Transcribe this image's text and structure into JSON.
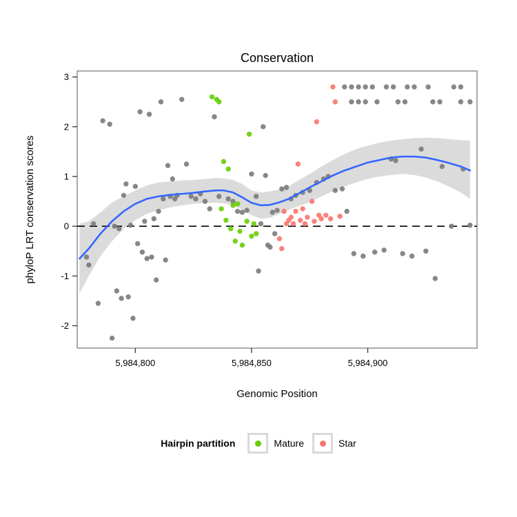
{
  "title": "Conservation",
  "xlabel": "Genomic Position",
  "ylabel": "phyloP LRT conservation scores",
  "legend": {
    "title": "Hairpin partition",
    "items": [
      {
        "label": "Mature",
        "color": "#66CD00"
      },
      {
        "label": "Star",
        "color": "#F8766D"
      }
    ]
  },
  "colors": {
    "other_points": "#7a7a7a",
    "smooth_line": "#3366FF",
    "ribbon": "#999999",
    "panel_border": "#8f8f8f",
    "zero_line": "#000000"
  },
  "chart_data": {
    "type": "scatter",
    "title": "Conservation",
    "xlabel": "Genomic Position",
    "ylabel": "phyloP LRT conservation scores",
    "xlim": [
      5984775,
      5984947
    ],
    "ylim": [
      -2.45,
      3.12
    ],
    "x_ticks": {
      "values": [
        5984800,
        5984850,
        5984900
      ],
      "labels": [
        "5,984,800",
        "5,984,850",
        "5,984,900"
      ]
    },
    "y_ticks": {
      "values": [
        -2,
        -1,
        0,
        1,
        2,
        3
      ],
      "labels": [
        "-2",
        "-1",
        "0",
        "1",
        "2",
        "3"
      ]
    },
    "zero_line": 0,
    "grid": false,
    "legend_position": "bottom",
    "series": [
      {
        "name": "Other",
        "color": "#7a7a7a",
        "points": [
          [
            5984779,
            -0.62
          ],
          [
            5984780,
            -0.78
          ],
          [
            5984782,
            0.05
          ],
          [
            5984784,
            -1.55
          ],
          [
            5984786,
            2.12
          ],
          [
            5984790,
            -2.25
          ],
          [
            5984789,
            2.05
          ],
          [
            5984791,
            0.0
          ],
          [
            5984792,
            -1.3
          ],
          [
            5984793,
            -0.05
          ],
          [
            5984794,
            -1.45
          ],
          [
            5984795,
            0.62
          ],
          [
            5984796,
            0.85
          ],
          [
            5984797,
            -1.42
          ],
          [
            5984798,
            0.02
          ],
          [
            5984799,
            -1.85
          ],
          [
            5984800,
            0.8
          ],
          [
            5984801,
            -0.35
          ],
          [
            5984802,
            2.3
          ],
          [
            5984803,
            -0.52
          ],
          [
            5984804,
            0.1
          ],
          [
            5984805,
            -0.65
          ],
          [
            5984806,
            2.25
          ],
          [
            5984807,
            -0.62
          ],
          [
            5984808,
            0.15
          ],
          [
            5984809,
            -1.08
          ],
          [
            5984810,
            0.3
          ],
          [
            5984811,
            2.5
          ],
          [
            5984812,
            0.55
          ],
          [
            5984813,
            -0.68
          ],
          [
            5984814,
            1.22
          ],
          [
            5984815,
            0.6
          ],
          [
            5984816,
            0.95
          ],
          [
            5984817,
            0.55
          ],
          [
            5984818,
            0.62
          ],
          [
            5984820,
            2.55
          ],
          [
            5984822,
            1.25
          ],
          [
            5984824,
            0.6
          ],
          [
            5984826,
            0.55
          ],
          [
            5984828,
            0.65
          ],
          [
            5984830,
            0.5
          ],
          [
            5984832,
            0.35
          ],
          [
            5984834,
            2.2
          ],
          [
            5984836,
            0.6
          ],
          [
            5984840,
            0.55
          ],
          [
            5984842,
            0.5
          ],
          [
            5984844,
            0.3
          ],
          [
            5984846,
            0.28
          ],
          [
            5984848,
            0.32
          ],
          [
            5984850,
            1.05
          ],
          [
            5984852,
            0.6
          ],
          [
            5984853,
            -0.9
          ],
          [
            5984854,
            0.05
          ],
          [
            5984855,
            2.0
          ],
          [
            5984856,
            1.02
          ],
          [
            5984857,
            -0.38
          ],
          [
            5984858,
            -0.42
          ],
          [
            5984859,
            0.28
          ],
          [
            5984860,
            -0.15
          ],
          [
            5984861,
            0.32
          ],
          [
            5984863,
            0.75
          ],
          [
            5984865,
            0.78
          ],
          [
            5984867,
            0.55
          ],
          [
            5984869,
            0.62
          ],
          [
            5984872,
            0.68
          ],
          [
            5984875,
            0.72
          ],
          [
            5984878,
            0.88
          ],
          [
            5984881,
            0.95
          ],
          [
            5984883,
            1.0
          ],
          [
            5984886,
            0.72
          ],
          [
            5984889,
            0.75
          ],
          [
            5984890,
            2.8
          ],
          [
            5984893,
            2.8
          ],
          [
            5984896,
            2.8
          ],
          [
            5984899,
            2.8
          ],
          [
            5984902,
            2.8
          ],
          [
            5984908,
            2.8
          ],
          [
            5984911,
            2.8
          ],
          [
            5984917,
            2.8
          ],
          [
            5984920,
            2.8
          ],
          [
            5984926,
            2.8
          ],
          [
            5984937,
            2.8
          ],
          [
            5984940,
            2.8
          ],
          [
            5984893,
            2.5
          ],
          [
            5984896,
            2.5
          ],
          [
            5984899,
            2.5
          ],
          [
            5984904,
            2.5
          ],
          [
            5984913,
            2.5
          ],
          [
            5984916,
            2.5
          ],
          [
            5984928,
            2.5
          ],
          [
            5984931,
            2.5
          ],
          [
            5984940,
            2.5
          ],
          [
            5984944,
            2.5
          ],
          [
            5984891,
            0.3
          ],
          [
            5984894,
            -0.55
          ],
          [
            5984898,
            -0.6
          ],
          [
            5984903,
            -0.52
          ],
          [
            5984907,
            -0.48
          ],
          [
            5984910,
            1.35
          ],
          [
            5984912,
            1.32
          ],
          [
            5984915,
            -0.55
          ],
          [
            5984919,
            -0.6
          ],
          [
            5984923,
            1.55
          ],
          [
            5984925,
            -0.5
          ],
          [
            5984929,
            -1.05
          ],
          [
            5984932,
            1.2
          ],
          [
            5984936,
            0.0
          ],
          [
            5984941,
            1.15
          ],
          [
            5984944,
            0.02
          ]
        ]
      },
      {
        "name": "Mature",
        "color": "#66CD00",
        "points": [
          [
            5984833,
            2.6
          ],
          [
            5984835,
            2.55
          ],
          [
            5984836,
            2.5
          ],
          [
            5984838,
            1.3
          ],
          [
            5984840,
            1.15
          ],
          [
            5984837,
            0.35
          ],
          [
            5984839,
            0.12
          ],
          [
            5984841,
            -0.05
          ],
          [
            5984842,
            0.42
          ],
          [
            5984843,
            -0.3
          ],
          [
            5984844,
            0.45
          ],
          [
            5984845,
            -0.1
          ],
          [
            5984846,
            -0.38
          ],
          [
            5984848,
            0.1
          ],
          [
            5984849,
            1.85
          ],
          [
            5984850,
            -0.2
          ],
          [
            5984851,
            0.05
          ],
          [
            5984852,
            -0.15
          ]
        ]
      },
      {
        "name": "Star",
        "color": "#F8766D",
        "points": [
          [
            5984885,
            2.8
          ],
          [
            5984886,
            2.5
          ],
          [
            5984878,
            2.1
          ],
          [
            5984870,
            1.25
          ],
          [
            5984862,
            -0.25
          ],
          [
            5984863,
            -0.45
          ],
          [
            5984864,
            0.3
          ],
          [
            5984865,
            0.05
          ],
          [
            5984866,
            0.12
          ],
          [
            5984867,
            0.18
          ],
          [
            5984868,
            0.05
          ],
          [
            5984869,
            0.3
          ],
          [
            5984871,
            0.12
          ],
          [
            5984872,
            0.35
          ],
          [
            5984873,
            0.05
          ],
          [
            5984874,
            0.18
          ],
          [
            5984876,
            0.5
          ],
          [
            5984877,
            0.1
          ],
          [
            5984879,
            0.22
          ],
          [
            5984880,
            0.15
          ],
          [
            5984882,
            0.22
          ],
          [
            5984884,
            0.15
          ],
          [
            5984888,
            0.2
          ]
        ]
      }
    ],
    "smooth": {
      "x": [
        5984776,
        5984780,
        5984785,
        5984790,
        5984795,
        5984800,
        5984805,
        5984810,
        5984815,
        5984820,
        5984825,
        5984830,
        5984835,
        5984838,
        5984842,
        5984846,
        5984850,
        5984854,
        5984858,
        5984862,
        5984866,
        5984870,
        5984875,
        5984880,
        5984885,
        5984890,
        5984895,
        5984900,
        5984905,
        5984910,
        5984915,
        5984920,
        5984925,
        5984930,
        5984935,
        5984940,
        5984944
      ],
      "y": [
        -0.65,
        -0.45,
        -0.15,
        0.1,
        0.3,
        0.45,
        0.55,
        0.6,
        0.63,
        0.65,
        0.67,
        0.7,
        0.72,
        0.72,
        0.68,
        0.58,
        0.47,
        0.42,
        0.43,
        0.48,
        0.55,
        0.65,
        0.78,
        0.9,
        1.02,
        1.12,
        1.2,
        1.28,
        1.33,
        1.38,
        1.4,
        1.4,
        1.38,
        1.33,
        1.27,
        1.2,
        1.12
      ],
      "lower": [
        -1.35,
        -1.0,
        -0.6,
        -0.3,
        -0.05,
        0.12,
        0.25,
        0.32,
        0.38,
        0.42,
        0.45,
        0.47,
        0.47,
        0.46,
        0.42,
        0.33,
        0.22,
        0.15,
        0.17,
        0.25,
        0.33,
        0.4,
        0.48,
        0.6,
        0.7,
        0.8,
        0.88,
        0.95,
        1.0,
        1.03,
        1.05,
        1.03,
        0.98,
        0.9,
        0.8,
        0.68,
        0.55
      ],
      "upper": [
        0.05,
        0.1,
        0.28,
        0.48,
        0.6,
        0.72,
        0.82,
        0.88,
        0.9,
        0.92,
        0.93,
        0.95,
        0.97,
        0.96,
        0.93,
        0.85,
        0.72,
        0.68,
        0.7,
        0.74,
        0.8,
        0.92,
        1.05,
        1.2,
        1.33,
        1.45,
        1.55,
        1.62,
        1.68,
        1.72,
        1.75,
        1.77,
        1.78,
        1.77,
        1.75,
        1.73,
        1.72
      ]
    }
  }
}
